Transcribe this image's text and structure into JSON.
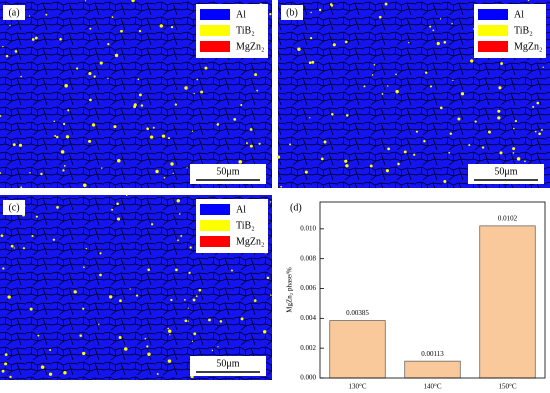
{
  "panels": [
    {
      "label": "(a)",
      "legend": [
        {
          "name": "Al",
          "color": "#0000ff"
        },
        {
          "name": "TiB₂",
          "color": "#ffff00"
        },
        {
          "name": "MgZn₂",
          "color": "#ff0000"
        }
      ],
      "scale_bar": "50μm"
    },
    {
      "label": "(b)",
      "legend": [
        {
          "name": "Al",
          "color": "#0000ff"
        },
        {
          "name": "TiB₂",
          "color": "#ffff00"
        },
        {
          "name": "MgZn₂",
          "color": "#ff0000"
        }
      ],
      "scale_bar": "50μm"
    },
    {
      "label": "(c)",
      "legend": [
        {
          "name": "Al",
          "color": "#0000ff"
        },
        {
          "name": "TiB₂",
          "color": "#ffff00"
        },
        {
          "name": "MgZn₂",
          "color": "#ff0000"
        }
      ],
      "scale_bar": "50μm"
    }
  ],
  "chart_data": {
    "type": "bar",
    "panel_label": "(d)",
    "y_label": "MgZn₂ phase/%",
    "categories": [
      "130°C",
      "140°C",
      "150°C"
    ],
    "values": [
      0.00385,
      0.00113,
      0.0102
    ],
    "color": "#f9c89b",
    "ylim": [
      0,
      0.0118
    ],
    "yticks": [
      {
        "value": 0,
        "label": "0.000"
      },
      0.002,
      0.004,
      0.006,
      0.008,
      {
        "value": 0.01,
        "label": "0.010"
      }
    ]
  }
}
